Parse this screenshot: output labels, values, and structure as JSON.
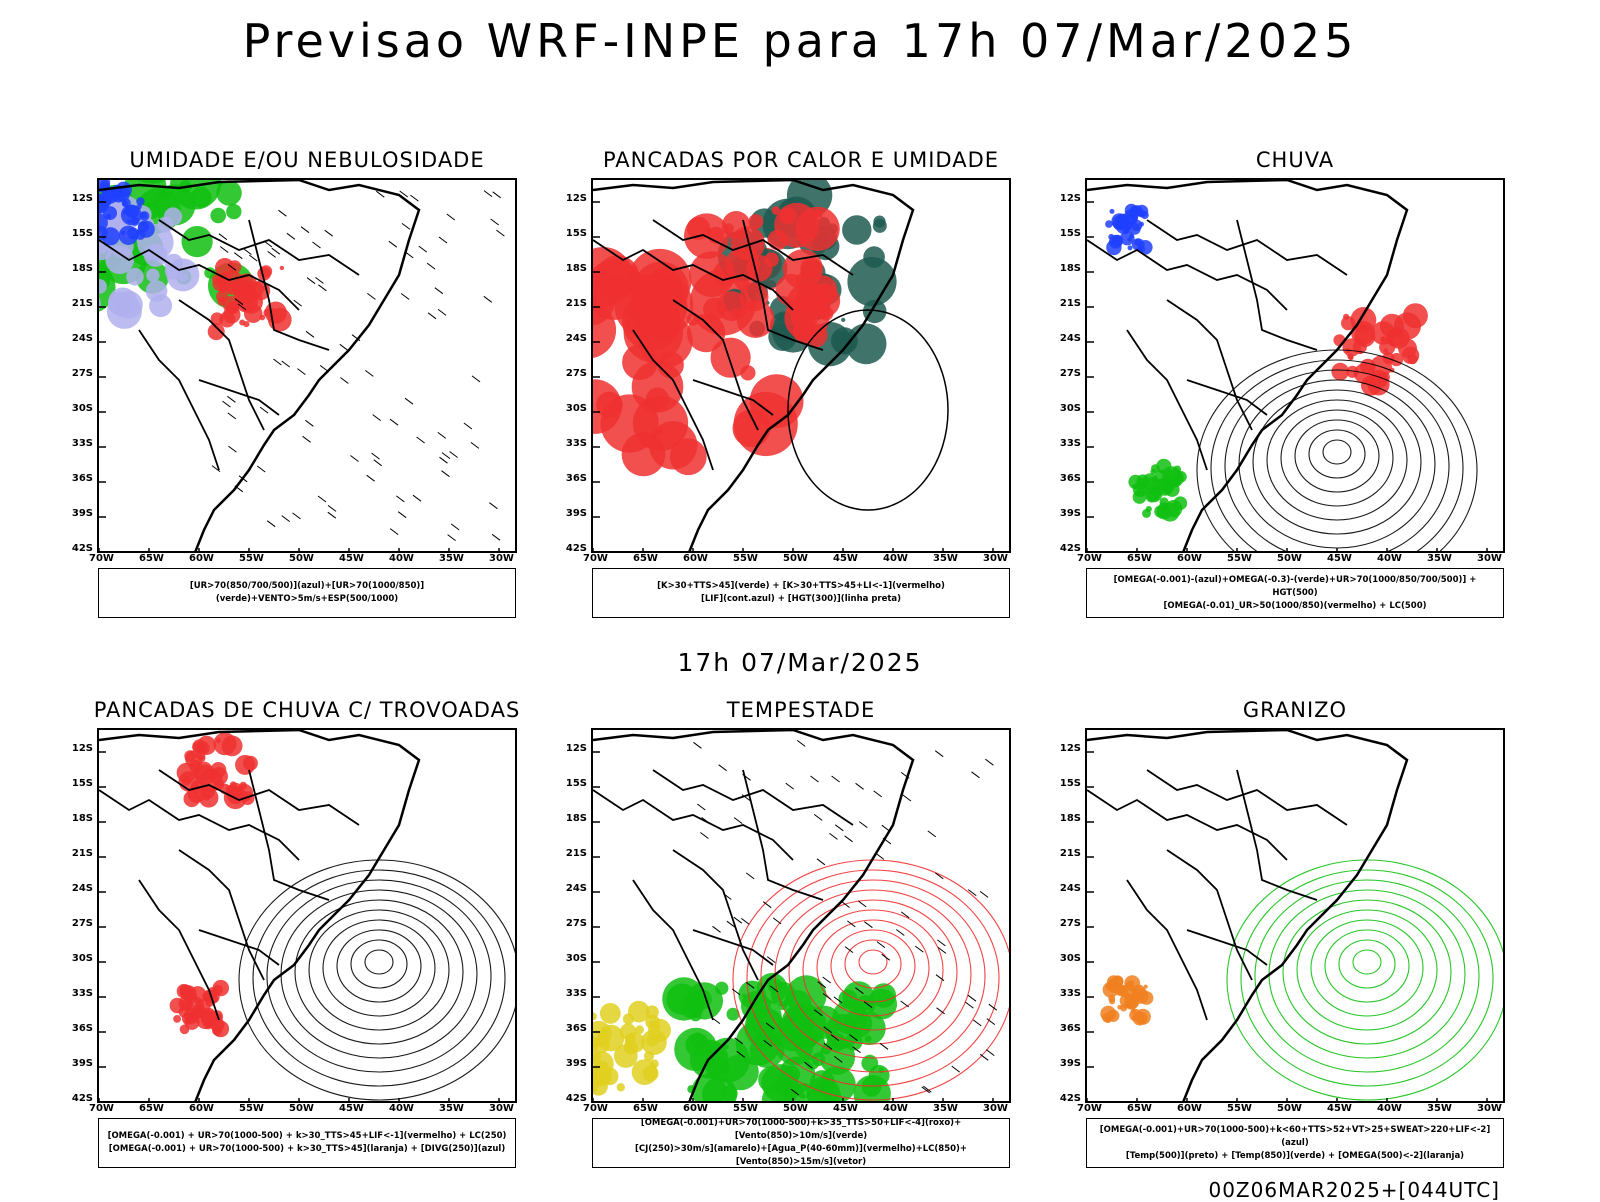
{
  "main_title": "Previsao WRF-INPE  para 17h 07/Mar/2025",
  "mid_title": "17h 07/Mar/2025",
  "footer": "00Z06MAR2025+[044UTC]",
  "lat_ticks": [
    "12S",
    "15S",
    "18S",
    "21S",
    "24S",
    "27S",
    "30S",
    "33S",
    "36S",
    "39S",
    "42S"
  ],
  "lon_ticks": [
    "70W",
    "65W",
    "60W",
    "55W",
    "50W",
    "45W",
    "40W",
    "35W",
    "30W"
  ],
  "colors": {
    "red": "#f03030",
    "green": "#10c010",
    "blue": "#2040ff",
    "lavender": "#b0b0ee",
    "darkgreen": "#1f5a50",
    "yellow": "#e0d020",
    "orange": "#f08020",
    "magenta": "#c020c0"
  },
  "panels": [
    {
      "title": "UMIDADE E/OU NEBULOSIDADE",
      "legend": [
        "[UR>70(850/700/500)](azul)+[UR>70(1000/850)](verde)+VENTO>5m/s+ESP(500/1000)"
      ]
    },
    {
      "title": "PANCADAS POR CALOR E UMIDADE",
      "legend": [
        "[K>30+TTS>45](verde) + [K>30+TTS>45+LI<-1](vermelho)",
        "[LIF](cont.azul) + [HGT(300)](linha preta)"
      ]
    },
    {
      "title": "CHUVA",
      "legend": [
        "[OMEGA(-0.001)-(azul)+OMEGA(-0.3)-(verde)+UR>70(1000/850/700/500)] + HGT(500)",
        "[OMEGA(-0.01)_UR>50(1000/850)(vermelho) + LC(500)"
      ]
    },
    {
      "title": "PANCADAS DE CHUVA C/ TROVOADAS",
      "legend": [
        "[OMEGA(-0.001) + UR>70(1000-500) + k>30_TTS>45+LIF<-1](vermelho) + LC(250)",
        "[OMEGA(-0.001) + UR>70(1000-500) + k>30_TTS>45](laranja) + [DIVG(250)](azul)"
      ]
    },
    {
      "title": "TEMPESTADE",
      "legend": [
        "[OMEGA(-0.001)+UR>70(1000-500)+k>35_TTS>50+LIF<-4](roxo)+[Vento(850)>10m/s](verde)",
        "[CJ(250)>30m/s](amarelo)+[Agua_P(40-60mm)](vermelho)+LC(850)+[Vento(850)>15m/s](vetor)"
      ]
    },
    {
      "title": "GRANIZO",
      "legend": [
        "[OMEGA(-0.001)+UR>70(1000-500)+k<60+TTS>52+VT>25+SWEAT>220+LIF<-2](azul)",
        "[Temp(500)](preto) + [Temp(850)](verde) + [OMEGA(500)<-2](laranja)"
      ]
    }
  ]
}
